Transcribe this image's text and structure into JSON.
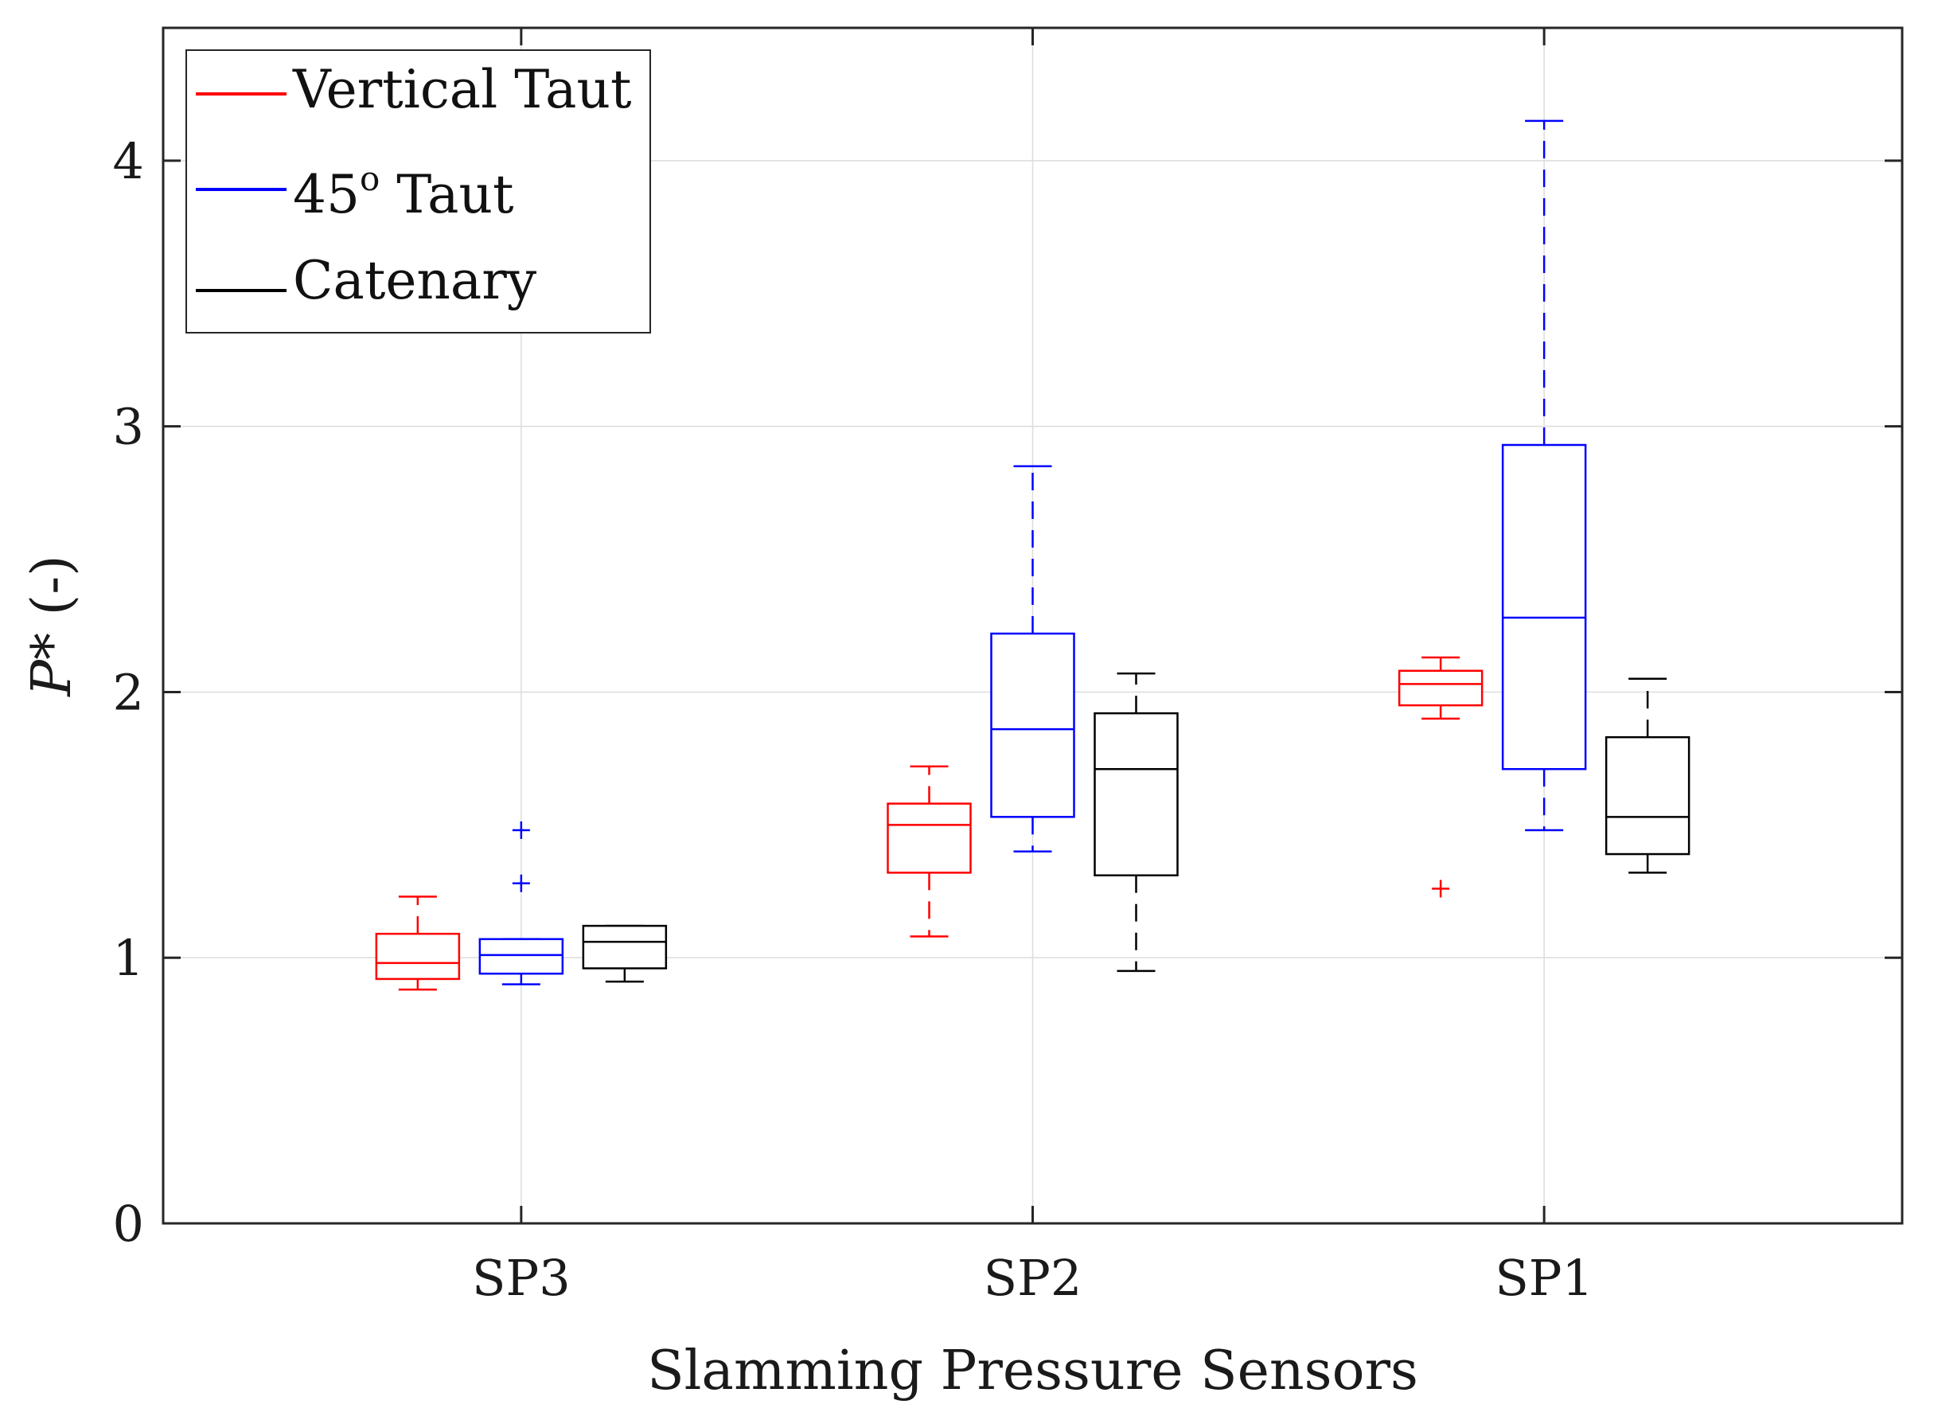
{
  "chart_data": {
    "type": "box",
    "title": "",
    "xlabel": "Slamming Pressure Sensors",
    "ylabel": "P* (-)",
    "ylabel_symbol": "P",
    "ylabel_suffix": "* (-)",
    "ylim": [
      0,
      4.5
    ],
    "yticks": [
      0,
      1,
      2,
      3,
      4
    ],
    "grid": true,
    "legend_position": "top-left",
    "categories": [
      "SP3",
      "SP2",
      "SP1"
    ],
    "series": [
      {
        "name": "Vertical Taut",
        "legend_label": "Vertical Taut",
        "color": "#ff0000",
        "boxes": [
          {
            "category": "SP3",
            "whisker_low": 0.88,
            "q1": 0.92,
            "median": 0.98,
            "q3": 1.09,
            "whisker_high": 1.23,
            "outliers": []
          },
          {
            "category": "SP2",
            "whisker_low": 1.08,
            "q1": 1.32,
            "median": 1.5,
            "q3": 1.58,
            "whisker_high": 1.72,
            "outliers": []
          },
          {
            "category": "SP1",
            "whisker_low": 1.9,
            "q1": 1.95,
            "median": 2.03,
            "q3": 2.08,
            "whisker_high": 2.13,
            "outliers": [
              1.26
            ]
          }
        ]
      },
      {
        "name": "45o Taut",
        "legend_label": "45",
        "legend_sup": "o",
        "legend_suffix": " Taut",
        "color": "#0000ff",
        "boxes": [
          {
            "category": "SP3",
            "whisker_low": 0.9,
            "q1": 0.94,
            "median": 1.01,
            "q3": 1.07,
            "whisker_high": 1.07,
            "outliers": [
              1.28,
              1.48
            ]
          },
          {
            "category": "SP2",
            "whisker_low": 1.4,
            "q1": 1.53,
            "median": 1.86,
            "q3": 2.22,
            "whisker_high": 2.85,
            "outliers": []
          },
          {
            "category": "SP1",
            "whisker_low": 1.48,
            "q1": 1.71,
            "median": 2.28,
            "q3": 2.93,
            "whisker_high": 4.15,
            "outliers": []
          }
        ]
      },
      {
        "name": "Catenary",
        "legend_label": "Catenary",
        "color": "#000000",
        "boxes": [
          {
            "category": "SP3",
            "whisker_low": 0.91,
            "q1": 0.96,
            "median": 1.06,
            "q3": 1.12,
            "whisker_high": 1.12,
            "outliers": []
          },
          {
            "category": "SP2",
            "whisker_low": 0.95,
            "q1": 1.31,
            "median": 1.71,
            "q3": 1.92,
            "whisker_high": 2.07,
            "outliers": []
          },
          {
            "category": "SP1",
            "whisker_low": 1.32,
            "q1": 1.39,
            "median": 1.53,
            "q3": 1.83,
            "whisker_high": 2.05,
            "outliers": []
          }
        ]
      }
    ]
  }
}
